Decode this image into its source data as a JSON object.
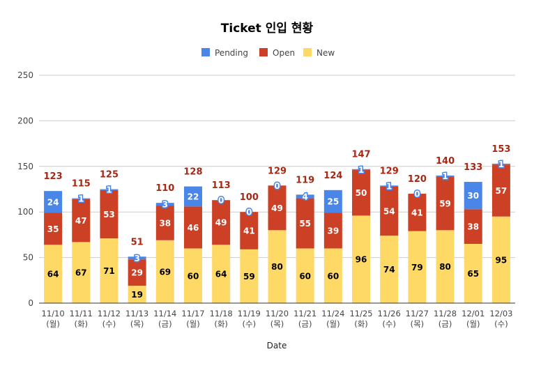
{
  "chart_data": {
    "type": "bar",
    "stacked": true,
    "title": "Ticket 인입 현황",
    "xlabel": "Date",
    "ylabel": "",
    "ylim": [
      0,
      250
    ],
    "yticks": [
      "0",
      "50",
      "100",
      "150",
      "200",
      "250"
    ],
    "grid": true,
    "legend_position": "top",
    "categories": [
      [
        "11/10",
        "(월)"
      ],
      [
        "11/11",
        "(화)"
      ],
      [
        "11/12",
        "(수)"
      ],
      [
        "11/13",
        "(목)"
      ],
      [
        "11/14",
        "(금)"
      ],
      [
        "11/17",
        "(월)"
      ],
      [
        "11/18",
        "(화)"
      ],
      [
        "11/19",
        "(수)"
      ],
      [
        "11/20",
        "(목)"
      ],
      [
        "11/21",
        "(금)"
      ],
      [
        "11/24",
        "(월)"
      ],
      [
        "11/25",
        "(화)"
      ],
      [
        "11/26",
        "(수)"
      ],
      [
        "11/27",
        "(목)"
      ],
      [
        "11/28",
        "(금)"
      ],
      [
        "12/01",
        "(월)"
      ],
      [
        "12/03",
        "(수)"
      ]
    ],
    "series": [
      {
        "name": "New",
        "color": "#ffd966",
        "label_color": "#000000",
        "values": [
          64,
          67,
          71,
          19,
          69,
          60,
          64,
          59,
          80,
          60,
          60,
          96,
          74,
          79,
          80,
          65,
          95
        ]
      },
      {
        "name": "Open",
        "color": "#cc4125",
        "label_color": "#ffffff",
        "values": [
          35,
          47,
          53,
          29,
          38,
          46,
          49,
          41,
          49,
          55,
          39,
          50,
          54,
          41,
          59,
          38,
          57
        ]
      },
      {
        "name": "Pending",
        "color": "#4a86e8",
        "label_color": "#ffffff",
        "values": [
          24,
          1,
          1,
          3,
          3,
          22,
          0,
          0,
          0,
          4,
          25,
          1,
          1,
          0,
          1,
          30,
          1
        ]
      }
    ],
    "totals": [
      123,
      115,
      125,
      51,
      110,
      128,
      113,
      100,
      129,
      119,
      124,
      147,
      129,
      120,
      140,
      133,
      153
    ],
    "legend_order": [
      "Pending",
      "Open",
      "New"
    ]
  }
}
